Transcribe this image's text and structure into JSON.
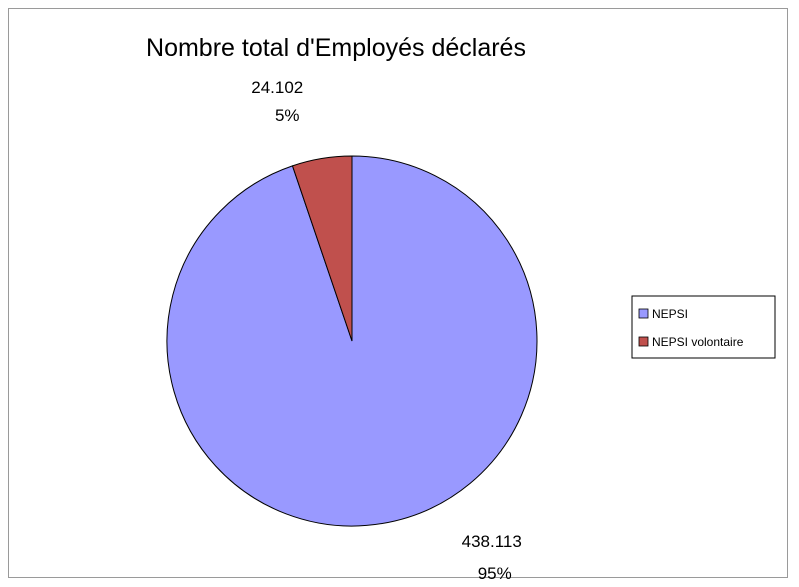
{
  "chart_data": {
    "type": "pie",
    "title": "Nombre total d'Employés déclarés",
    "slices": [
      {
        "label": "NEPSI",
        "value": 438113,
        "value_text": "438.113",
        "percent_text": "95%",
        "color": "#9999FF"
      },
      {
        "label": "NEPSI volontaire",
        "value": 24102,
        "value_text": "24.102",
        "percent_text": "5%",
        "color": "#C0504D"
      }
    ],
    "legend": {
      "position": "right",
      "items": [
        "NEPSI",
        "NEPSI volontaire"
      ]
    },
    "start_angle": "top, clockwise"
  }
}
